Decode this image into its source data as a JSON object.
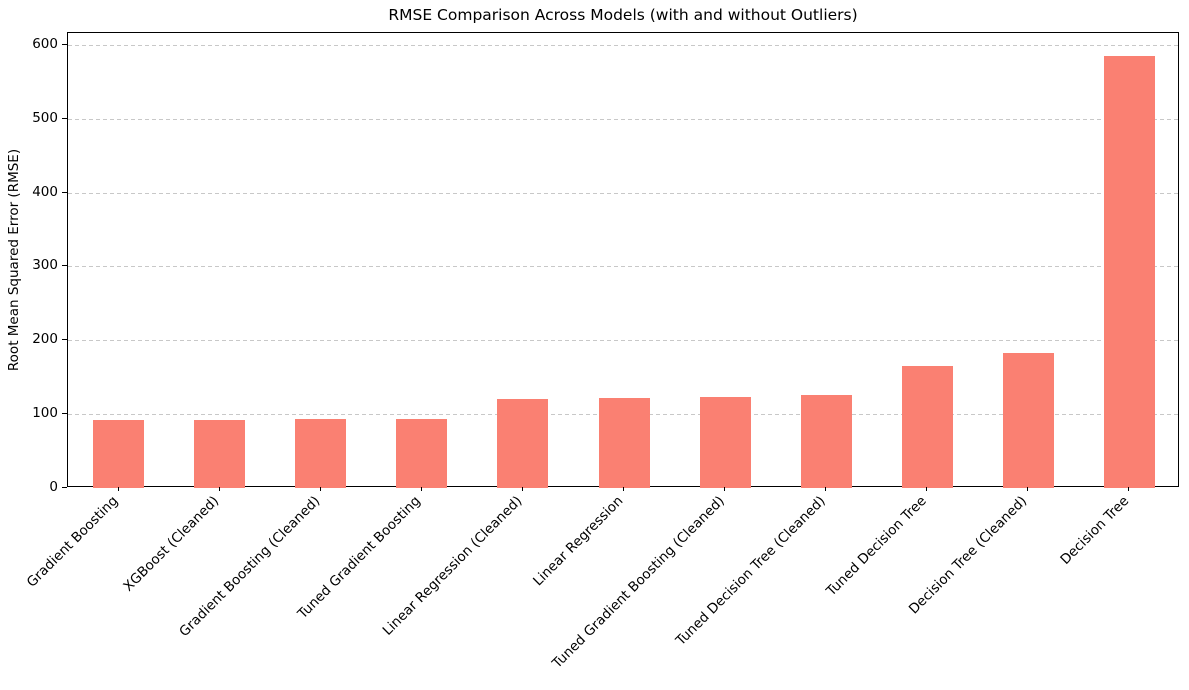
{
  "chart_data": {
    "type": "bar",
    "title": "RMSE Comparison Across Models (with and without Outliers)",
    "xlabel": "",
    "ylabel": "Root Mean Squared Error (RMSE)",
    "categories": [
      "Gradient Boosting",
      "XGBoost (Cleaned)",
      "Gradient Boosting (Cleaned)",
      "Tuned Gradient Boosting",
      "Linear Regression (Cleaned)",
      "Linear Regression",
      "Tuned Gradient Boosting (Cleaned)",
      "Tuned Decision Tree (Cleaned)",
      "Tuned Decision Tree",
      "Decision Tree (Cleaned)",
      "Decision Tree"
    ],
    "values": [
      92,
      92,
      93,
      94,
      120,
      122,
      123,
      126,
      165,
      183,
      585
    ],
    "yticks": [
      0,
      100,
      200,
      300,
      400,
      500,
      600
    ],
    "ylim": [
      0,
      616
    ],
    "bar_color": "#FA8072",
    "grid": "horizontal-dashed",
    "grid_color": "#c8c8c8",
    "x_tick_rotation_deg": 45,
    "legend": "none"
  }
}
